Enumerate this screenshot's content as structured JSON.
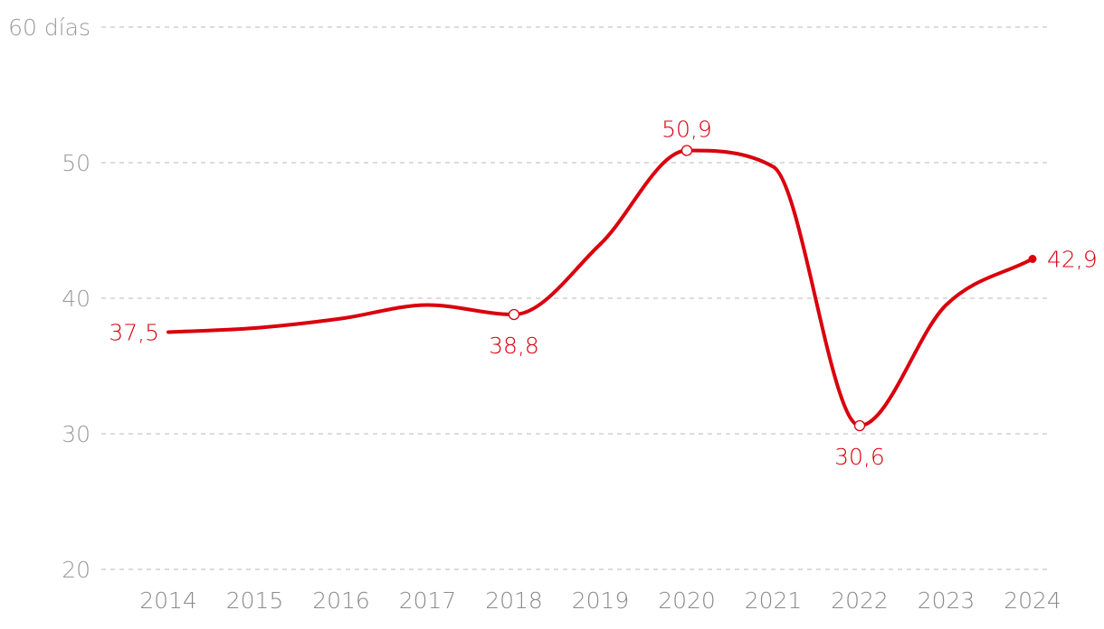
{
  "chart_data": {
    "type": "line",
    "x": [
      "2014",
      "2015",
      "2016",
      "2017",
      "2018",
      "2019",
      "2020",
      "2021",
      "2022",
      "2023",
      "2024"
    ],
    "series": [
      {
        "values": [
          37.5,
          37.8,
          38.5,
          39.5,
          38.8,
          44.0,
          50.9,
          49.7,
          30.6,
          39.5,
          42.9
        ],
        "color": "#d9000d"
      }
    ],
    "y_ticks": [
      20,
      30,
      40,
      50,
      60
    ],
    "y_tick_labels": [
      "20",
      "30",
      "40",
      "50",
      "60 días"
    ],
    "ylim": [
      20,
      60
    ],
    "grid": true,
    "grid_style": "dashed",
    "annotations": [
      {
        "x": "2014",
        "value": 37.5,
        "label": "37,5",
        "position": "left",
        "marker": "none"
      },
      {
        "x": "2018",
        "value": 38.8,
        "label": "38,8",
        "position": "below",
        "marker": "open-circle"
      },
      {
        "x": "2020",
        "value": 50.9,
        "label": "50,9",
        "position": "above",
        "marker": "open-circle"
      },
      {
        "x": "2022",
        "value": 30.6,
        "label": "30,6",
        "position": "below",
        "marker": "open-circle"
      },
      {
        "x": "2024",
        "value": 42.9,
        "label": "42,9",
        "position": "right",
        "marker": "filled-circle"
      }
    ]
  }
}
